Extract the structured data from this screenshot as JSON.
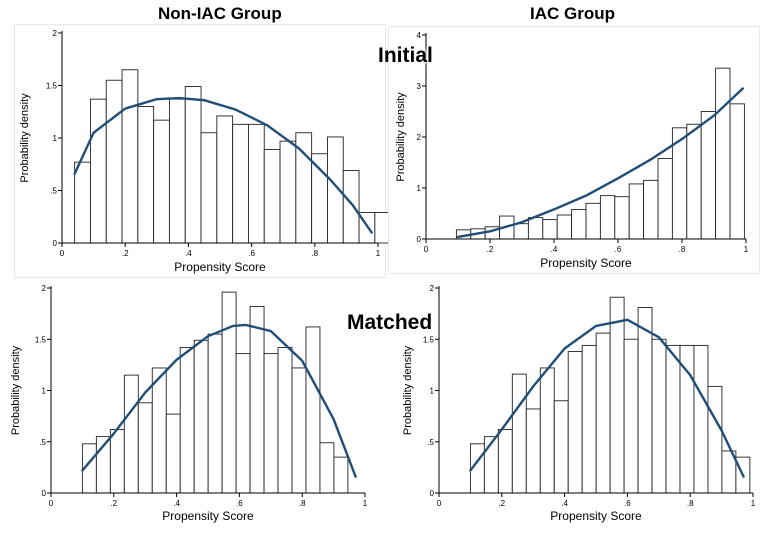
{
  "column_titles": [
    "Non-IAC Group",
    "IAC Group"
  ],
  "row_labels": [
    "Initial",
    "Matched"
  ],
  "colors": {
    "curve": "#1f4e79",
    "bar_stroke": "#222222",
    "axis": "#000000"
  },
  "chart_data": [
    {
      "type": "bar",
      "row": "Initial",
      "group": "Non-IAC Group",
      "xlabel": "Propensity Score",
      "ylabel": "Probability density",
      "xlim": [
        0,
        1
      ],
      "ylim": [
        0,
        2
      ],
      "x_ticks": [
        0,
        0.2,
        0.4,
        0.6,
        0.8,
        1
      ],
      "x_tick_labels": [
        "0",
        ".2",
        ".4",
        ".6",
        ".8",
        "1"
      ],
      "y_ticks": [
        0,
        0.5,
        1,
        1.5,
        2
      ],
      "y_tick_labels": [
        "0",
        ".5",
        "1",
        "1.5",
        "2"
      ],
      "bin_start": 0.04,
      "bin_width": 0.05,
      "values": [
        0.77,
        1.37,
        1.55,
        1.65,
        1.3,
        1.17,
        1.37,
        1.49,
        1.05,
        1.21,
        1.13,
        1.13,
        0.89,
        0.97,
        1.05,
        0.85,
        1.01,
        0.69,
        0.29,
        0.29
      ],
      "fit_curve": {
        "x": [
          0.04,
          0.1,
          0.2,
          0.3,
          0.37,
          0.45,
          0.55,
          0.65,
          0.75,
          0.85,
          0.92,
          0.98
        ],
        "y": [
          0.66,
          1.05,
          1.28,
          1.37,
          1.38,
          1.36,
          1.27,
          1.12,
          0.9,
          0.6,
          0.36,
          0.1
        ]
      }
    },
    {
      "type": "bar",
      "row": "Initial",
      "group": "IAC Group",
      "xlabel": "Propensity Score",
      "ylabel": "Probability density",
      "xlim": [
        0,
        1
      ],
      "ylim": [
        0,
        4
      ],
      "x_ticks": [
        0,
        0.2,
        0.4,
        0.6,
        0.8,
        1
      ],
      "x_tick_labels": [
        "0",
        ".2",
        ".4",
        ".6",
        ".8",
        "1"
      ],
      "y_ticks": [
        0,
        1,
        2,
        3,
        4
      ],
      "y_tick_labels": [
        "0",
        "1",
        "2",
        "3",
        "4"
      ],
      "bin_start": 0.095,
      "bin_width": 0.045,
      "values": [
        0.18,
        0.2,
        0.24,
        0.45,
        0.3,
        0.42,
        0.38,
        0.47,
        0.58,
        0.7,
        0.85,
        0.83,
        1.08,
        1.15,
        1.58,
        2.18,
        2.25,
        2.5,
        3.35,
        2.65
      ],
      "fit_curve": {
        "x": [
          0.1,
          0.2,
          0.3,
          0.4,
          0.5,
          0.6,
          0.7,
          0.8,
          0.9,
          0.99
        ],
        "y": [
          0.04,
          0.15,
          0.33,
          0.58,
          0.85,
          1.19,
          1.55,
          1.96,
          2.42,
          2.95
        ]
      }
    },
    {
      "type": "bar",
      "row": "Matched",
      "group": "Non-IAC Group",
      "xlabel": "Propensity Score",
      "ylabel": "Probability density",
      "xlim": [
        0,
        1
      ],
      "ylim": [
        0,
        2
      ],
      "x_ticks": [
        0,
        0.2,
        0.4,
        0.6,
        0.8,
        1
      ],
      "x_tick_labels": [
        "0",
        ".2",
        ".4",
        ".6",
        ".8",
        "1"
      ],
      "y_ticks": [
        0,
        0.5,
        1,
        1.5,
        2
      ],
      "y_tick_labels": [
        "0",
        ".5",
        "1",
        "1.5",
        "2"
      ],
      "bin_start": 0.1,
      "bin_width": 0.0445,
      "values": [
        0.48,
        0.55,
        0.62,
        1.15,
        0.88,
        1.22,
        0.77,
        1.42,
        1.49,
        1.55,
        1.96,
        1.36,
        1.82,
        1.36,
        1.42,
        1.22,
        1.62,
        0.49,
        0.35
      ],
      "fit_curve": {
        "x": [
          0.1,
          0.2,
          0.3,
          0.4,
          0.5,
          0.58,
          0.62,
          0.7,
          0.8,
          0.9,
          0.97
        ],
        "y": [
          0.22,
          0.58,
          0.98,
          1.3,
          1.53,
          1.63,
          1.64,
          1.58,
          1.29,
          0.72,
          0.16
        ]
      }
    },
    {
      "type": "bar",
      "row": "Matched",
      "group": "IAC Group",
      "xlabel": "Propensity Score",
      "ylabel": "Probability density",
      "xlim": [
        0,
        1
      ],
      "ylim": [
        0,
        2
      ],
      "x_ticks": [
        0,
        0.2,
        0.4,
        0.6,
        0.8,
        1
      ],
      "x_tick_labels": [
        "0",
        ".2",
        ".4",
        ".6",
        ".8",
        "1"
      ],
      "y_ticks": [
        0,
        0.5,
        1,
        1.5,
        2
      ],
      "y_tick_labels": [
        "0",
        ".5",
        "1",
        "1.5",
        "2"
      ],
      "bin_start": 0.1,
      "bin_width": 0.0445,
      "values": [
        0.48,
        0.55,
        0.62,
        1.16,
        0.82,
        1.22,
        0.9,
        1.38,
        1.44,
        1.56,
        1.91,
        1.5,
        1.81,
        1.5,
        1.44,
        1.44,
        1.44,
        1.04,
        0.41,
        0.35
      ],
      "fit_curve": {
        "x": [
          0.1,
          0.2,
          0.3,
          0.4,
          0.5,
          0.6,
          0.7,
          0.8,
          0.9,
          0.97
        ],
        "y": [
          0.22,
          0.62,
          1.04,
          1.41,
          1.63,
          1.69,
          1.52,
          1.15,
          0.61,
          0.16
        ]
      }
    }
  ]
}
